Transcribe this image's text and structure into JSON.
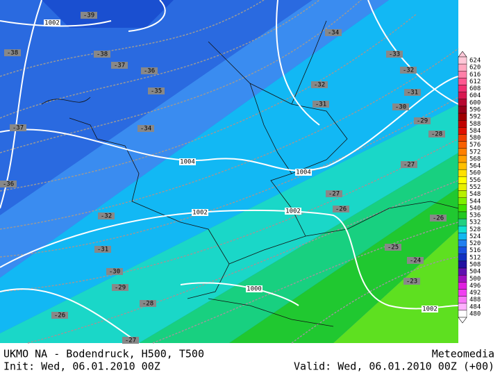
{
  "map": {
    "isobar_labels": [
      1002,
      1004,
      1004,
      1002,
      1002,
      1000,
      1002
    ],
    "temperature_labels": [
      -39,
      -38,
      -38,
      -37,
      -36,
      -35,
      -37,
      -34,
      -36,
      -32,
      -31,
      -30,
      -29,
      -28,
      -26,
      -27,
      -34,
      -33,
      -32,
      -32,
      -31,
      -31,
      -30,
      -29,
      -28,
      -27,
      -27,
      -26,
      -26,
      -25,
      -24,
      -23
    ]
  },
  "colorbar": {
    "labels": [
      624,
      620,
      616,
      612,
      608,
      604,
      600,
      596,
      592,
      588,
      584,
      580,
      576,
      572,
      568,
      564,
      560,
      556,
      552,
      548,
      544,
      540,
      536,
      532,
      528,
      524,
      520,
      516,
      512,
      508,
      504,
      500,
      496,
      492,
      488,
      484,
      480
    ]
  },
  "footer": {
    "title": "UKMO NA - Bodendruck, H500, T500",
    "brand": "Meteomedia",
    "init": "Init: Wed, 06.01.2010 00Z",
    "valid": "Valid: Wed, 06.01.2010 00Z (+00)"
  }
}
